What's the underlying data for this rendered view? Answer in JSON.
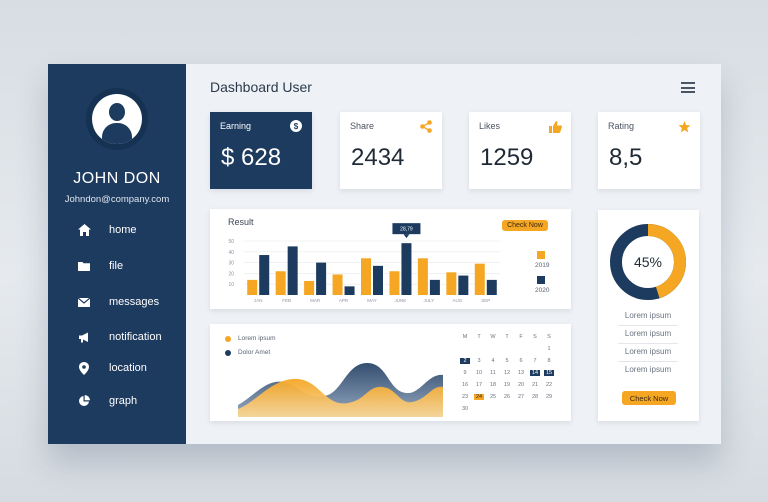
{
  "sidebar": {
    "user_name": "JOHN DON",
    "email": "Johndon@company.com",
    "items": [
      {
        "label": "home",
        "icon": "home-icon"
      },
      {
        "label": "file",
        "icon": "folder-icon"
      },
      {
        "label": "messages",
        "icon": "envelope-icon"
      },
      {
        "label": "notification",
        "icon": "megaphone-icon"
      },
      {
        "label": "location",
        "icon": "location-pin-icon"
      },
      {
        "label": "graph",
        "icon": "pie-chart-icon"
      }
    ]
  },
  "header": {
    "title": "Dashboard User"
  },
  "stats": {
    "earning": {
      "label": "Earning",
      "value": "$ 628",
      "icon_text": "$"
    },
    "share": {
      "label": "Share",
      "value": "2434"
    },
    "likes": {
      "label": "Likes",
      "value": "1259"
    },
    "rating": {
      "label": "Rating",
      "value": "8,5"
    }
  },
  "result": {
    "title": "Result",
    "button": "Check Now",
    "tooltip": "28,79",
    "legend": [
      "2019",
      "2020"
    ]
  },
  "chart_data": {
    "type": "bar",
    "title": "Result",
    "categories": [
      "JAN",
      "FEB",
      "MAR",
      "APR",
      "MAY",
      "JUNE",
      "JULY",
      "AUG",
      "SEP"
    ],
    "y_ticks": [
      "50",
      "40",
      "30",
      "20",
      "10"
    ],
    "ylim": [
      0,
      50
    ],
    "series": [
      {
        "name": "2019",
        "color": "#f5a623",
        "values": [
          14,
          22,
          13,
          19,
          34,
          22,
          34,
          21,
          29
        ]
      },
      {
        "name": "2020",
        "color": "#1d3a5f",
        "values": [
          37,
          45,
          30,
          8,
          27,
          48,
          14,
          18,
          14
        ]
      }
    ]
  },
  "wave_panel": {
    "legend": [
      {
        "label": "Lorem ipsum",
        "color": "#f5a623"
      },
      {
        "label": "Dolor Amet",
        "color": "#1d3a5f"
      }
    ]
  },
  "calendar": {
    "headers": [
      "M",
      "T",
      "W",
      "T",
      "F",
      "S",
      "S"
    ],
    "weeks": [
      [
        "",
        "",
        "",
        "",
        "",
        "",
        "1"
      ],
      [
        "2",
        "3",
        "4",
        "5",
        "6",
        "7",
        "8"
      ],
      [
        "9",
        "10",
        "11",
        "12",
        "13",
        "14",
        "15"
      ],
      [
        "16",
        "17",
        "18",
        "19",
        "20",
        "21",
        "22"
      ],
      [
        "23",
        "24",
        "25",
        "26",
        "27",
        "28",
        "29"
      ],
      [
        "30",
        "",
        "",
        "",
        "",
        "",
        ""
      ]
    ]
  },
  "donut": {
    "value": "45%",
    "percent": 45,
    "lines": [
      "Lorem ipsum",
      "Lorem ipsum",
      "Lorem ipsum",
      "Lorem ipsum"
    ],
    "button": "Check Now"
  },
  "colors": {
    "navy": "#1d3a5f",
    "accent": "#f5a623",
    "panel": "#eef1f5"
  }
}
